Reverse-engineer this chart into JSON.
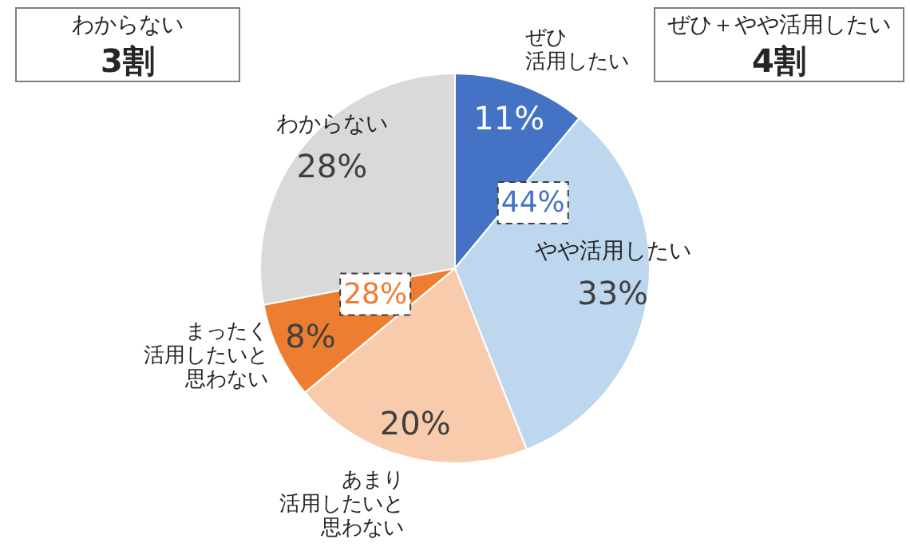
{
  "chart_data": {
    "type": "pie",
    "categories": [
      "ぜひ活用したい",
      "やや活用したい",
      "あまり活用したいと思わない",
      "まったく活用したいと思わない",
      "わからない"
    ],
    "values": [
      11,
      33,
      20,
      8,
      28
    ],
    "colors": [
      "#4472c4",
      "#bdd7ee",
      "#f8cbad",
      "#ed7d31",
      "#d9d9d9"
    ],
    "value_labels": [
      "11%",
      "33%",
      "20%",
      "8%",
      "28%"
    ],
    "annotations": [
      "わからない\n3割",
      "ぜひ＋やや活用したい\n4割",
      "44%",
      "28%"
    ],
    "legend": false
  }
}
